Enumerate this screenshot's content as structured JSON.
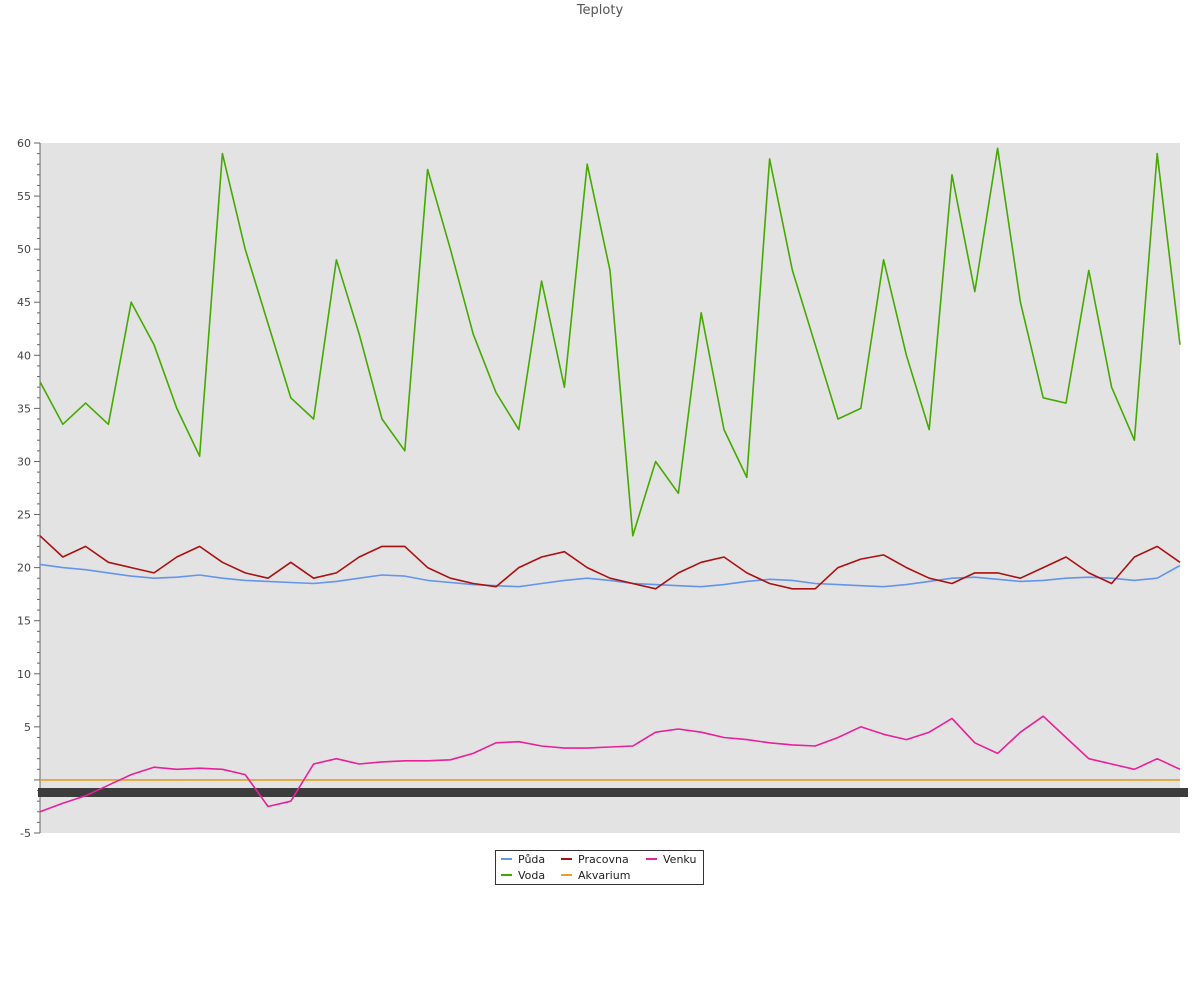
{
  "chart_data": {
    "type": "line",
    "title": "Teploty",
    "xlabel": "",
    "ylabel": "",
    "ylim": [
      -5,
      60
    ],
    "yticks": [
      -5,
      5,
      10,
      15,
      20,
      25,
      30,
      35,
      40,
      45,
      50,
      55,
      60
    ],
    "grid": false,
    "plot_background": "#e3e3e3",
    "legend_position": "bottom-center",
    "x": [
      0,
      2,
      4,
      6,
      8,
      10,
      12,
      14,
      16,
      18,
      20,
      22,
      24,
      26,
      28,
      30,
      32,
      34,
      36,
      38,
      40,
      42,
      44,
      46,
      48,
      50,
      52,
      54,
      56,
      58,
      60,
      62,
      64,
      66,
      68,
      70,
      72,
      74,
      76,
      78,
      80,
      82,
      84,
      86,
      88,
      90,
      92,
      94,
      96,
      98,
      100
    ],
    "series": [
      {
        "name": "Půda",
        "color": "#6495ed",
        "values": [
          20.3,
          20.0,
          19.8,
          19.5,
          19.2,
          19.0,
          19.1,
          19.3,
          19.0,
          18.8,
          18.7,
          18.6,
          18.5,
          18.7,
          19.0,
          19.3,
          19.2,
          18.8,
          18.6,
          18.4,
          18.3,
          18.2,
          18.5,
          18.8,
          19.0,
          18.8,
          18.5,
          18.4,
          18.3,
          18.2,
          18.4,
          18.7,
          18.9,
          18.8,
          18.5,
          18.4,
          18.3,
          18.2,
          18.4,
          18.7,
          19.0,
          19.1,
          18.9,
          18.7,
          18.8,
          19.0,
          19.1,
          19.0,
          18.8,
          19.0,
          20.2
        ]
      },
      {
        "name": "Voda",
        "color": "#44aa00",
        "values": [
          37.5,
          33.5,
          35.5,
          33.5,
          45.0,
          41.0,
          35.0,
          30.5,
          59.0,
          50.0,
          43.0,
          36.0,
          34.0,
          49.0,
          42.0,
          34.0,
          31.0,
          57.5,
          50.0,
          42.0,
          36.5,
          33.0,
          47.0,
          37.0,
          58.0,
          48.0,
          23.0,
          30.0,
          27.0,
          44.0,
          33.0,
          28.5,
          58.5,
          48.0,
          41.0,
          34.0,
          35.0,
          49.0,
          40.0,
          33.0,
          57.0,
          46.0,
          59.5,
          45.0,
          36.0,
          35.5,
          48.0,
          37.0,
          32.0,
          59.0,
          41.0
        ]
      },
      {
        "name": "Pracovna",
        "color": "#aa1111",
        "values": [
          23.0,
          21.0,
          22.0,
          20.5,
          20.0,
          19.5,
          21.0,
          22.0,
          20.5,
          19.5,
          19.0,
          20.5,
          19.0,
          19.5,
          21.0,
          22.0,
          22.0,
          20.0,
          19.0,
          18.5,
          18.2,
          20.0,
          21.0,
          21.5,
          20.0,
          19.0,
          18.5,
          18.0,
          19.5,
          20.5,
          21.0,
          19.5,
          18.5,
          18.0,
          18.0,
          20.0,
          20.8,
          21.2,
          20.0,
          19.0,
          18.5,
          19.5,
          19.5,
          19.0,
          20.0,
          21.0,
          19.5,
          18.5,
          21.0,
          22.0,
          20.5
        ]
      },
      {
        "name": "Akvarium",
        "color": "#e8a020",
        "values": [
          0,
          0,
          0,
          0,
          0,
          0,
          0,
          0,
          0,
          0,
          0,
          0,
          0,
          0,
          0,
          0,
          0,
          0,
          0,
          0,
          0,
          0,
          0,
          0,
          0,
          0,
          0,
          0,
          0,
          0,
          0,
          0,
          0,
          0,
          0,
          0,
          0,
          0,
          0,
          0,
          0,
          0,
          0,
          0,
          0,
          0,
          0,
          0,
          0,
          0,
          0
        ]
      },
      {
        "name": "Venku",
        "color": "#e8209a",
        "values": [
          -3.0,
          -2.2,
          -1.5,
          -0.5,
          0.5,
          1.2,
          1.0,
          1.1,
          1.0,
          0.5,
          -2.5,
          -2.0,
          1.5,
          2.0,
          1.5,
          1.7,
          1.8,
          1.8,
          1.9,
          2.5,
          3.5,
          3.6,
          3.2,
          3.0,
          3.0,
          3.1,
          3.2,
          4.5,
          4.8,
          4.5,
          4.0,
          3.8,
          3.5,
          3.3,
          3.2,
          4.0,
          5.0,
          4.3,
          3.8,
          4.5,
          5.8,
          3.5,
          2.5,
          4.5,
          6.0,
          4.0,
          2.0,
          1.5,
          1.0,
          2.0,
          1.0
        ]
      }
    ]
  }
}
